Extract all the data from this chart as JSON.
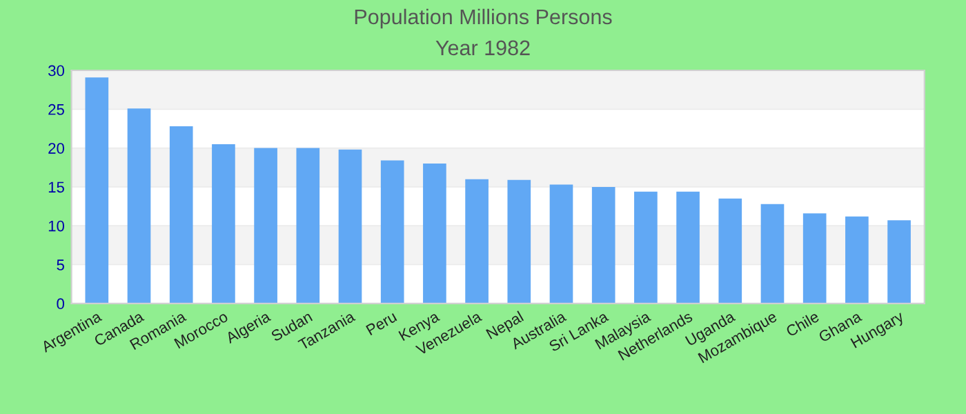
{
  "chart_data": {
    "type": "bar",
    "title": "Population Millions Persons",
    "subtitle": "Year 1982",
    "categories": [
      "Argentina",
      "Canada",
      "Romania",
      "Morocco",
      "Algeria",
      "Sudan",
      "Tanzania",
      "Peru",
      "Kenya",
      "Venezuela",
      "Nepal",
      "Australia",
      "Sri Lanka",
      "Malaysia",
      "Netherlands",
      "Uganda",
      "Mozambique",
      "Chile",
      "Ghana",
      "Hungary"
    ],
    "values": [
      29.1,
      25.1,
      22.8,
      20.5,
      20.0,
      20.0,
      19.8,
      18.4,
      18.0,
      16.0,
      15.9,
      15.3,
      15.0,
      14.4,
      14.4,
      13.5,
      12.8,
      11.6,
      11.2,
      10.7
    ],
    "color": "#61a8f4",
    "ylim": [
      0,
      30
    ],
    "yticks": [
      0,
      5,
      10,
      15,
      20,
      25,
      30
    ],
    "grid": "y"
  }
}
